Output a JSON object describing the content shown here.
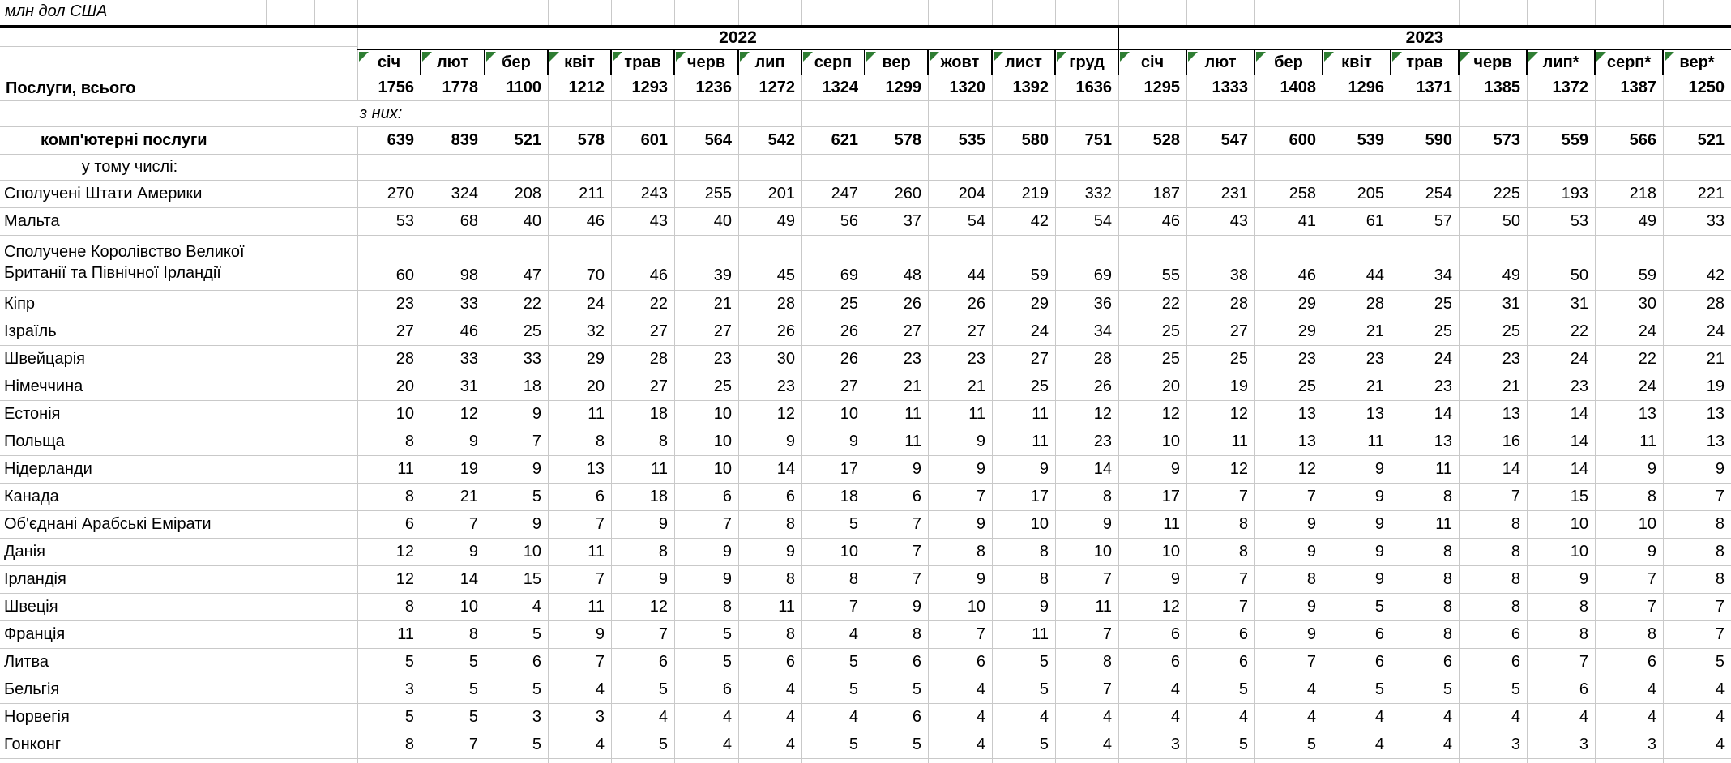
{
  "title": "млн дол США",
  "colors": {
    "note_triangle": "#2e7d32",
    "grid_line": "#c9c9c9",
    "strong_border": "#000000"
  },
  "years": [
    {
      "label": "2022",
      "months": [
        "січ",
        "лют",
        "бер",
        "квіт",
        "трав",
        "черв",
        "лип",
        "серп",
        "вер",
        "жовт",
        "лист",
        "груд"
      ]
    },
    {
      "label": "2023",
      "months": [
        "січ",
        "лют",
        "бер",
        "квіт",
        "трав",
        "черв",
        "лип*",
        "серп*",
        "вер*"
      ]
    }
  ],
  "rows": [
    {
      "label": "Послуги, всього",
      "style": "total",
      "v2022": [
        1756,
        1778,
        1100,
        1212,
        1293,
        1236,
        1272,
        1324,
        1299,
        1320,
        1392,
        1636
      ],
      "v2023": [
        1295,
        1333,
        1408,
        1296,
        1371,
        1385,
        1372,
        1387,
        1250
      ]
    },
    {
      "label": "з них:",
      "style": "note-right",
      "v2022": [],
      "v2023": []
    },
    {
      "label": "комп'ютерні послуги",
      "style": "bold-sub",
      "v2022": [
        639,
        839,
        521,
        578,
        601,
        564,
        542,
        621,
        578,
        535,
        580,
        751
      ],
      "v2023": [
        528,
        547,
        600,
        539,
        590,
        573,
        559,
        566,
        521
      ]
    },
    {
      "label": "у тому числі:",
      "style": "note",
      "v2022": [],
      "v2023": []
    },
    {
      "label": "Сполучені Штати Америки",
      "style": "country",
      "v2022": [
        270,
        324,
        208,
        211,
        243,
        255,
        201,
        247,
        260,
        204,
        219,
        332
      ],
      "v2023": [
        187,
        231,
        258,
        205,
        254,
        225,
        193,
        218,
        221
      ]
    },
    {
      "label": "Мальта",
      "style": "country",
      "v2022": [
        53,
        68,
        40,
        46,
        43,
        40,
        49,
        56,
        37,
        54,
        42,
        54
      ],
      "v2023": [
        46,
        43,
        41,
        61,
        57,
        50,
        53,
        49,
        33
      ]
    },
    {
      "label": "Сполучене Королівство Великої\nБританії та Північної Ірландії",
      "style": "country-tall",
      "v2022": [
        60,
        98,
        47,
        70,
        46,
        39,
        45,
        69,
        48,
        44,
        59,
        69
      ],
      "v2023": [
        55,
        38,
        46,
        44,
        34,
        49,
        50,
        59,
        42
      ]
    },
    {
      "label": "Кіпр",
      "style": "country",
      "v2022": [
        23,
        33,
        22,
        24,
        22,
        21,
        28,
        25,
        26,
        26,
        29,
        36
      ],
      "v2023": [
        22,
        28,
        29,
        28,
        25,
        31,
        31,
        30,
        28
      ]
    },
    {
      "label": "Ізраїль",
      "style": "country",
      "v2022": [
        27,
        46,
        25,
        32,
        27,
        27,
        26,
        26,
        27,
        27,
        24,
        34
      ],
      "v2023": [
        25,
        27,
        29,
        21,
        25,
        25,
        22,
        24,
        24
      ]
    },
    {
      "label": "Швейцарія",
      "style": "country",
      "v2022": [
        28,
        33,
        33,
        29,
        28,
        23,
        30,
        26,
        23,
        23,
        27,
        28
      ],
      "v2023": [
        25,
        25,
        23,
        23,
        24,
        23,
        24,
        22,
        21
      ]
    },
    {
      "label": "Німеччина",
      "style": "country",
      "v2022": [
        20,
        31,
        18,
        20,
        27,
        25,
        23,
        27,
        21,
        21,
        25,
        26
      ],
      "v2023": [
        20,
        19,
        25,
        21,
        23,
        21,
        23,
        24,
        19
      ]
    },
    {
      "label": "Естонія",
      "style": "country",
      "v2022": [
        10,
        12,
        9,
        11,
        18,
        10,
        12,
        10,
        11,
        11,
        11,
        12
      ],
      "v2023": [
        12,
        12,
        13,
        13,
        14,
        13,
        14,
        13,
        13
      ]
    },
    {
      "label": "Польща",
      "style": "country",
      "v2022": [
        8,
        9,
        7,
        8,
        8,
        10,
        9,
        9,
        11,
        9,
        11,
        23
      ],
      "v2023": [
        10,
        11,
        13,
        11,
        13,
        16,
        14,
        11,
        13
      ]
    },
    {
      "label": "Нідерланди",
      "style": "country",
      "v2022": [
        11,
        19,
        9,
        13,
        11,
        10,
        14,
        17,
        9,
        9,
        9,
        14
      ],
      "v2023": [
        9,
        12,
        12,
        9,
        11,
        14,
        14,
        9,
        9
      ]
    },
    {
      "label": "Канада",
      "style": "country",
      "v2022": [
        8,
        21,
        5,
        6,
        18,
        6,
        6,
        18,
        6,
        7,
        17,
        8
      ],
      "v2023": [
        17,
        7,
        7,
        9,
        8,
        7,
        15,
        8,
        7
      ]
    },
    {
      "label": "Об'єднані Арабські Емірати",
      "style": "country",
      "v2022": [
        6,
        7,
        9,
        7,
        9,
        7,
        8,
        5,
        7,
        9,
        10,
        9
      ],
      "v2023": [
        11,
        8,
        9,
        9,
        11,
        8,
        10,
        10,
        8
      ]
    },
    {
      "label": "Данія",
      "style": "country",
      "v2022": [
        12,
        9,
        10,
        11,
        8,
        9,
        9,
        10,
        7,
        8,
        8,
        10
      ],
      "v2023": [
        10,
        8,
        9,
        9,
        8,
        8,
        10,
        9,
        8
      ]
    },
    {
      "label": "Ірландія",
      "style": "country",
      "v2022": [
        12,
        14,
        15,
        7,
        9,
        9,
        8,
        8,
        7,
        9,
        8,
        7
      ],
      "v2023": [
        9,
        7,
        8,
        9,
        8,
        8,
        9,
        7,
        8
      ]
    },
    {
      "label": "Швеція",
      "style": "country",
      "v2022": [
        8,
        10,
        4,
        11,
        12,
        8,
        11,
        7,
        9,
        10,
        9,
        11
      ],
      "v2023": [
        12,
        7,
        9,
        5,
        8,
        8,
        8,
        7,
        7
      ]
    },
    {
      "label": "Франція",
      "style": "country",
      "v2022": [
        11,
        8,
        5,
        9,
        7,
        5,
        8,
        4,
        8,
        7,
        11,
        7
      ],
      "v2023": [
        6,
        6,
        9,
        6,
        8,
        6,
        8,
        8,
        7
      ]
    },
    {
      "label": "Литва",
      "style": "country",
      "v2022": [
        5,
        5,
        6,
        7,
        6,
        5,
        6,
        5,
        6,
        6,
        5,
        8
      ],
      "v2023": [
        6,
        6,
        7,
        6,
        6,
        6,
        7,
        6,
        5
      ]
    },
    {
      "label": "Бельгія",
      "style": "country",
      "v2022": [
        3,
        5,
        5,
        4,
        5,
        6,
        4,
        5,
        5,
        4,
        5,
        7
      ],
      "v2023": [
        4,
        5,
        4,
        5,
        5,
        5,
        6,
        4,
        4
      ]
    },
    {
      "label": "Норвегія",
      "style": "country",
      "v2022": [
        5,
        5,
        3,
        3,
        4,
        4,
        4,
        4,
        6,
        4,
        4,
        4
      ],
      "v2023": [
        4,
        4,
        4,
        4,
        4,
        4,
        4,
        4,
        4
      ]
    },
    {
      "label": "Гонконг",
      "style": "country",
      "v2022": [
        8,
        7,
        5,
        4,
        5,
        4,
        4,
        5,
        5,
        4,
        5,
        4
      ],
      "v2023": [
        3,
        5,
        5,
        4,
        4,
        3,
        3,
        3,
        4
      ]
    }
  ]
}
